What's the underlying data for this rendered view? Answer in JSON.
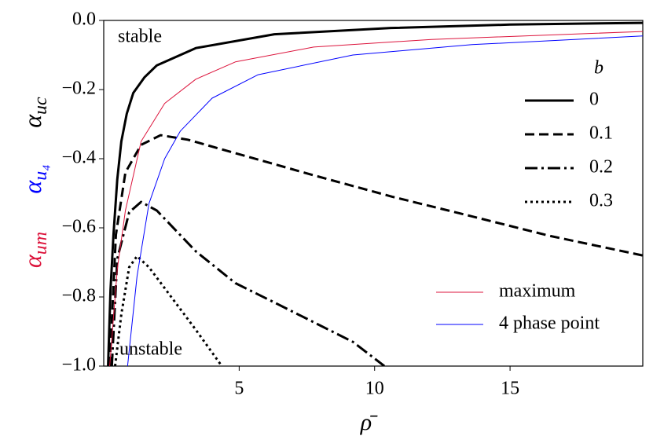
{
  "chart_data": {
    "type": "line",
    "xlabel": "ρ̄",
    "ylabel": [
      {
        "symbol": "α",
        "subscript": "um",
        "color": "#dc143c"
      },
      {
        "symbol": "α",
        "subscript": "u₄",
        "color": "#0000ff"
      },
      {
        "symbol": "α",
        "subscript": "uc",
        "color": "#000000"
      }
    ],
    "annotations": [
      "stable",
      "unstable"
    ],
    "xlim": [
      0,
      19.9
    ],
    "ylim": [
      -1.0,
      0.0
    ],
    "xticks": [
      5,
      10,
      15
    ],
    "yticks": [
      {
        "value": -1.0,
        "label": "−1.0"
      },
      {
        "value": -0.8,
        "label": "−0.8"
      },
      {
        "value": -0.6,
        "label": "−0.6"
      },
      {
        "value": -0.4,
        "label": "−0.4"
      },
      {
        "value": -0.2,
        "label": "−0.2"
      },
      {
        "value": 0.0,
        "label": "0.0"
      }
    ],
    "legend_title": "b",
    "series": [
      {
        "name": "0",
        "color": "#000000",
        "dash": "solid",
        "x": [
          0.16,
          0.25,
          0.36,
          0.5,
          0.65,
          0.85,
          1.09,
          1.5,
          1.96,
          3.4,
          6.3,
          10.6,
          15,
          19.9
        ],
        "values": [
          -1.0,
          -0.78,
          -0.62,
          -0.46,
          -0.35,
          -0.27,
          -0.21,
          -0.165,
          -0.13,
          -0.08,
          -0.04,
          -0.022,
          -0.012,
          -0.007
        ]
      },
      {
        "name": "0.1",
        "color": "#000000",
        "dash": "dashed",
        "x": [
          0.22,
          0.45,
          0.8,
          1.38,
          2.1,
          3.1,
          4.86,
          7.75,
          10.65,
          13.55,
          16.45,
          19.9
        ],
        "values": [
          -1.0,
          -0.62,
          -0.44,
          -0.36,
          -0.332,
          -0.345,
          -0.384,
          -0.448,
          -0.51,
          -0.566,
          -0.623,
          -0.68
        ]
      },
      {
        "name": "0.2",
        "color": "#000000",
        "dash": "dashdot",
        "x": [
          0.3,
          0.5,
          0.94,
          1.38,
          1.96,
          3.4,
          4.86,
          6.3,
          7.75,
          9.2,
          10.36
        ],
        "values": [
          -1.0,
          -0.69,
          -0.555,
          -0.525,
          -0.55,
          -0.668,
          -0.76,
          -0.816,
          -0.873,
          -0.93,
          -1.0
        ]
      },
      {
        "name": "0.3",
        "color": "#000000",
        "dash": "dotted",
        "x": [
          0.42,
          0.65,
          0.94,
          1.23,
          1.67,
          2.54,
          3.4,
          4.36
        ],
        "values": [
          -1.0,
          -0.85,
          -0.714,
          -0.682,
          -0.714,
          -0.805,
          -0.895,
          -1.0
        ]
      },
      {
        "name": "maximum",
        "color": "#dc143c",
        "dash": "solid",
        "x": [
          0.22,
          0.5,
          0.8,
          1.38,
          2.25,
          3.4,
          4.86,
          7.75,
          12.1,
          19.9
        ],
        "values": [
          -1.0,
          -0.72,
          -0.55,
          -0.35,
          -0.24,
          -0.17,
          -0.12,
          -0.077,
          -0.055,
          -0.032
        ]
      },
      {
        "name": "4 phase point",
        "color": "#0000ff",
        "dash": "solid",
        "x": [
          0.88,
          1.23,
          1.67,
          2.25,
          2.83,
          4.0,
          5.7,
          9.2,
          13.6,
          19.9
        ],
        "values": [
          -1.0,
          -0.74,
          -0.53,
          -0.4,
          -0.32,
          -0.225,
          -0.157,
          -0.1,
          -0.07,
          -0.045
        ]
      }
    ]
  }
}
